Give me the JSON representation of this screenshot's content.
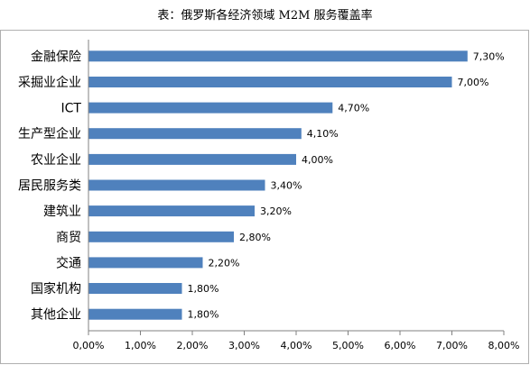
{
  "chart_data": {
    "type": "bar",
    "orientation": "horizontal",
    "title": "表：俄罗斯各经济领域 M2M 服务覆盖率",
    "categories": [
      "金融保险",
      "采掘业企业",
      "ICT",
      "生产型企业",
      "农业企业",
      "居民服务类",
      "建筑业",
      "商贸",
      "交通",
      "国家机构",
      "其他企业"
    ],
    "values": [
      7.3,
      7.0,
      4.7,
      4.1,
      4.0,
      3.4,
      3.2,
      2.8,
      2.2,
      1.8,
      1.8
    ],
    "value_labels": [
      "7,30%",
      "7,00%",
      "4,70%",
      "4,10%",
      "4,00%",
      "3,40%",
      "3,20%",
      "2,80%",
      "2,20%",
      "1,80%",
      "1,80%"
    ],
    "xlim": [
      0,
      8
    ],
    "xticks": [
      0,
      1,
      2,
      3,
      4,
      5,
      6,
      7,
      8
    ],
    "xtick_labels": [
      "0,00%",
      "1,00%",
      "2,00%",
      "3,00%",
      "4,00%",
      "5,00%",
      "6,00%",
      "7,00%",
      "8,00%"
    ],
    "xlabel": "",
    "ylabel": "",
    "grid": false,
    "legend": "none",
    "bar_color": "#4f81bd"
  }
}
